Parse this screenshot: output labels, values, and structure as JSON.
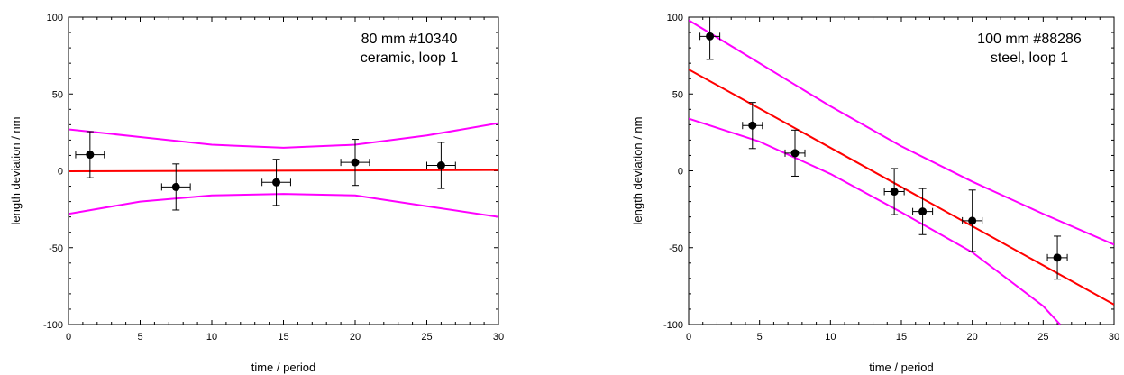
{
  "chart_data": [
    {
      "type": "scatter",
      "annotation": [
        "80 mm #10340",
        "ceramic, loop 1"
      ],
      "xlabel": "time / period",
      "ylabel": "length deviation / nm",
      "xlim": [
        0,
        30
      ],
      "ylim": [
        -100,
        100
      ],
      "x_ticks": [
        0,
        5,
        10,
        15,
        20,
        25,
        30
      ],
      "y_ticks": [
        -100,
        -50,
        0,
        50,
        100
      ],
      "grid": false,
      "points": [
        {
          "x": 1.5,
          "y": 10.5,
          "xerr": 1.0,
          "yerr": 15
        },
        {
          "x": 7.5,
          "y": -10.5,
          "xerr": 1.0,
          "yerr": 15
        },
        {
          "x": 14.5,
          "y": -7.5,
          "xerr": 1.0,
          "yerr": 15
        },
        {
          "x": 20,
          "y": 5.5,
          "xerr": 1.0,
          "yerr": 15
        },
        {
          "x": 26,
          "y": 3.5,
          "xerr": 1.0,
          "yerr": 15
        }
      ],
      "fit_line": {
        "color": "#ff0000",
        "x": [
          0,
          30
        ],
        "y": [
          -0.3,
          0.5
        ]
      },
      "confidence_bands": {
        "color": "#ff00ff",
        "upper": {
          "x": [
            0,
            5,
            10,
            15,
            20,
            25,
            30
          ],
          "y": [
            27,
            22,
            17,
            15,
            17,
            23,
            31
          ]
        },
        "lower": {
          "x": [
            0,
            5,
            10,
            15,
            20,
            25,
            30
          ],
          "y": [
            -28,
            -20,
            -16,
            -15,
            -16,
            -23,
            -30
          ]
        }
      }
    },
    {
      "type": "scatter",
      "annotation": [
        "100 mm #88286",
        "steel, loop 1"
      ],
      "xlabel": "time / period",
      "ylabel": "length deviation / nm",
      "xlim": [
        0,
        30
      ],
      "ylim": [
        -100,
        100
      ],
      "x_ticks": [
        0,
        5,
        10,
        15,
        20,
        25,
        30
      ],
      "y_ticks": [
        -100,
        -50,
        0,
        50,
        100
      ],
      "grid": false,
      "points": [
        {
          "x": 1.5,
          "y": 87.5,
          "xerr": 0.7,
          "yerr": 15
        },
        {
          "x": 4.5,
          "y": 29.5,
          "xerr": 0.7,
          "yerr": 15
        },
        {
          "x": 7.5,
          "y": 11.5,
          "xerr": 0.7,
          "yerr": 15
        },
        {
          "x": 14.5,
          "y": -13.5,
          "xerr": 0.7,
          "yerr": 15
        },
        {
          "x": 16.5,
          "y": -26.5,
          "xerr": 0.7,
          "yerr": 15
        },
        {
          "x": 20,
          "y": -32.5,
          "xerr": 0.7,
          "yerr": 20
        },
        {
          "x": 26,
          "y": -56.5,
          "xerr": 0.7,
          "yerr": 14
        }
      ],
      "fit_line": {
        "color": "#ff0000",
        "x": [
          0,
          30
        ],
        "y": [
          66,
          -87
        ]
      },
      "confidence_bands": {
        "color": "#ff00ff",
        "upper": {
          "x": [
            0,
            5,
            10,
            15,
            20,
            25,
            30
          ],
          "y": [
            98,
            70,
            42,
            16,
            -7,
            -28,
            -48
          ]
        },
        "lower": {
          "x": [
            0,
            5,
            10,
            15,
            20,
            25,
            26.2
          ],
          "y": [
            34,
            19,
            -2,
            -27,
            -53,
            -88,
            -100
          ]
        }
      }
    }
  ]
}
